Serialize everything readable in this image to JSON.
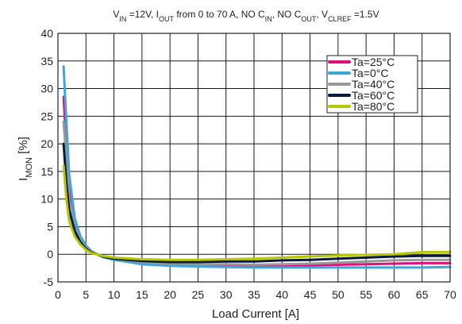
{
  "chart_data": {
    "type": "line",
    "title": {
      "parts": [
        {
          "t": "V"
        },
        {
          "t": "IN",
          "sub": true
        },
        {
          "t": " =12V, I"
        },
        {
          "t": "OUT",
          "sub": true
        },
        {
          "t": " from 0 to 70 A, NO C"
        },
        {
          "t": "IN",
          "sub": true
        },
        {
          "t": ", NO C"
        },
        {
          "t": "OUT",
          "sub": true
        },
        {
          "t": ", V"
        },
        {
          "t": "CLREF",
          "sub": true
        },
        {
          "t": " =1.5V"
        }
      ]
    },
    "xlabel": "Load Current [A]",
    "ylabel": {
      "main": "I",
      "sub": "MON",
      "rest": "  [%]"
    },
    "xlim": [
      0,
      70
    ],
    "ylim": [
      -5,
      40
    ],
    "xticks": [
      "0",
      "5",
      "10",
      "15",
      "20",
      "25",
      "30",
      "35",
      "40",
      "45",
      "50",
      "55",
      "60",
      "65",
      "70"
    ],
    "yticks": [
      "-5",
      "0",
      "5",
      "10",
      "15",
      "20",
      "25",
      "30",
      "35",
      "40"
    ],
    "grid": true,
    "legend_position": "top-right",
    "series": [
      {
        "name": "Ta=25°C",
        "color": "#e0107a",
        "points": [
          [
            1,
            28.5
          ],
          [
            1.5,
            20
          ],
          [
            2,
            12
          ],
          [
            3,
            5.5
          ],
          [
            4,
            2.8
          ],
          [
            5,
            1.4
          ],
          [
            6,
            0.5
          ],
          [
            7,
            0
          ],
          [
            8,
            -0.4
          ],
          [
            10,
            -0.9
          ],
          [
            15,
            -1.6
          ],
          [
            20,
            -1.9
          ],
          [
            25,
            -2.0
          ],
          [
            30,
            -2.0
          ],
          [
            35,
            -2.1
          ],
          [
            40,
            -2.1
          ],
          [
            45,
            -2.0
          ],
          [
            50,
            -1.9
          ],
          [
            55,
            -1.8
          ],
          [
            60,
            -1.7
          ],
          [
            65,
            -1.6
          ],
          [
            70,
            -1.6
          ]
        ]
      },
      {
        "name": "Ta=0°C",
        "color": "#3aa8dc",
        "points": [
          [
            1,
            34
          ],
          [
            1.5,
            24
          ],
          [
            2,
            14.5
          ],
          [
            3,
            6.5
          ],
          [
            4,
            3.3
          ],
          [
            5,
            1.6
          ],
          [
            6,
            0.5
          ],
          [
            7,
            0
          ],
          [
            8,
            -0.5
          ],
          [
            10,
            -1.0
          ],
          [
            15,
            -1.8
          ],
          [
            20,
            -2.1
          ],
          [
            25,
            -2.2
          ],
          [
            30,
            -2.3
          ],
          [
            35,
            -2.4
          ],
          [
            40,
            -2.4
          ],
          [
            45,
            -2.4
          ],
          [
            50,
            -2.4
          ],
          [
            55,
            -2.4
          ],
          [
            60,
            -2.4
          ],
          [
            65,
            -2.4
          ],
          [
            70,
            -2.3
          ]
        ]
      },
      {
        "name": "Ta=40°C",
        "color": "#999999",
        "points": [
          [
            1,
            24
          ],
          [
            1.5,
            17
          ],
          [
            2,
            10
          ],
          [
            3,
            4.8
          ],
          [
            4,
            2.5
          ],
          [
            5,
            1.2
          ],
          [
            6,
            0.4
          ],
          [
            7,
            0
          ],
          [
            8,
            -0.4
          ],
          [
            10,
            -0.8
          ],
          [
            15,
            -1.4
          ],
          [
            20,
            -1.7
          ],
          [
            25,
            -1.8
          ],
          [
            30,
            -1.8
          ],
          [
            35,
            -1.9
          ],
          [
            40,
            -1.8
          ],
          [
            45,
            -1.7
          ],
          [
            50,
            -1.5
          ],
          [
            55,
            -1.3
          ],
          [
            60,
            -1.1
          ],
          [
            65,
            -1.0
          ],
          [
            70,
            -1.0
          ]
        ]
      },
      {
        "name": "Ta=60°C",
        "color": "#0a1a3c",
        "points": [
          [
            1,
            20
          ],
          [
            1.5,
            13
          ],
          [
            2,
            8
          ],
          [
            3,
            4.2
          ],
          [
            4,
            2.2
          ],
          [
            5,
            1.0
          ],
          [
            6,
            0.3
          ],
          [
            7,
            0
          ],
          [
            8,
            -0.4
          ],
          [
            10,
            -0.8
          ],
          [
            15,
            -1.2
          ],
          [
            20,
            -1.4
          ],
          [
            25,
            -1.4
          ],
          [
            30,
            -1.3
          ],
          [
            35,
            -1.3
          ],
          [
            40,
            -1.1
          ],
          [
            45,
            -1.0
          ],
          [
            50,
            -0.8
          ],
          [
            55,
            -0.6
          ],
          [
            60,
            -0.4
          ],
          [
            65,
            -0.3
          ],
          [
            70,
            -0.3
          ]
        ]
      },
      {
        "name": "Ta=80°C",
        "color": "#b8c800",
        "points": [
          [
            1,
            16
          ],
          [
            1.5,
            10
          ],
          [
            2,
            6
          ],
          [
            3,
            3.2
          ],
          [
            4,
            1.8
          ],
          [
            5,
            0.8
          ],
          [
            6,
            0.2
          ],
          [
            7,
            0
          ],
          [
            8,
            -0.3
          ],
          [
            10,
            -0.6
          ],
          [
            15,
            -0.9
          ],
          [
            20,
            -1.0
          ],
          [
            25,
            -1.0
          ],
          [
            30,
            -0.9
          ],
          [
            35,
            -0.8
          ],
          [
            40,
            -0.6
          ],
          [
            45,
            -0.4
          ],
          [
            50,
            -0.2
          ],
          [
            55,
            -0.1
          ],
          [
            60,
            0.0
          ],
          [
            65,
            0.4
          ],
          [
            70,
            0.4
          ]
        ]
      }
    ]
  }
}
